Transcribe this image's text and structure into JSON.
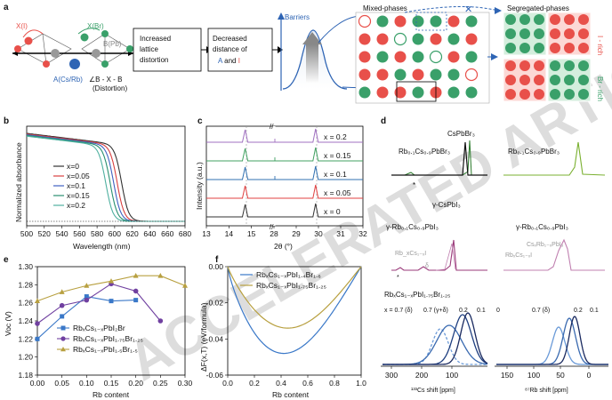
{
  "panels": {
    "a": {
      "label": "a",
      "crystal": {
        "x_label": "X(I)",
        "x2_label": "X(Br)",
        "b_label": "B(Pb)",
        "a_label": "A(Cs/Rb)",
        "angle_label": "∠B - X - B",
        "angle_sub": "(Distortion)"
      },
      "box1": [
        "Increased",
        "lattice",
        "distortion"
      ],
      "box2": [
        "Decreased",
        "distance of"
      ],
      "box2_a": "A",
      "box2_and": " and ",
      "box2_i": "I",
      "barriers_label": "Barriers",
      "mixed_title": "Mixed-phases",
      "segregated_title": "Segregated-phases",
      "i_rich": "I - rich",
      "br_rich": "Br - rich",
      "colors": {
        "red": "#e8504a",
        "green": "#3aa06a",
        "blue": "#2e64b4"
      }
    },
    "b": {
      "label": "b",
      "ylabel": "Normalized absorbance",
      "xlabel": "Wavelength (nm)",
      "legend": [
        "x=0",
        "x=0.05",
        "x=0.1",
        "x=0.15",
        "x=0.2"
      ],
      "colors": [
        "#333333",
        "#d94040",
        "#4060c0",
        "#2a9070",
        "#4fb0a0"
      ],
      "edges": [
        608,
        603,
        599,
        595,
        590
      ]
    },
    "c": {
      "label": "c",
      "ylabel": "Intensity (a.u.)",
      "xlabel": "2θ (°)",
      "break_mark": "//",
      "curves": [
        "x = 0.2",
        "x = 0.15",
        "x = 0.1",
        "x = 0.05",
        "x = 0"
      ],
      "colors": [
        "#a070c0",
        "#40a060",
        "#3070b0",
        "#e04040",
        "#333333"
      ]
    },
    "d": {
      "label": "d",
      "top_left": "CsPbBr₃",
      "top_left2": "Rb₀.₁Cs₀.₉PbBr₃",
      "top_right": "Rb₀.₁Cs₀.₉PbBr₃",
      "star": "*",
      "mid_gamma_cs": "γ-CsPbI₃",
      "mid_left": "γ-Rb₀.₁Cs₀.₉PbI₃",
      "mid_sub1": "Rb_xCs₁₋ₓI",
      "mid_delta": "δ",
      "mid_right": "γ-Rb₀.₁Cs₀.₉PbI₃",
      "mid_right_sub": "CsₓRb₁₋ₓPbI₃",
      "mid_right_sub2": "RbₓCs₁₋ₓI",
      "bottom_title": "RbₓCs₁₋ₓPbI₁.₇₅Br₁.₂₅",
      "bottom_labels_left": [
        "x = 0.7 (δ)",
        "0.7 (γ+δ)",
        "0.2",
        "0.1"
      ],
      "bottom_labels_right": [
        "0",
        "0.7 (δ)",
        "0.2",
        "0.1"
      ],
      "xlabel_left": "¹³³Cs shift [ppm]",
      "xlabel_right": "⁸⁷Rb shift [ppm]"
    },
    "e": {
      "label": "e",
      "ylabel": "Voc (V)",
      "xlabel": "Rb content",
      "legend": [
        "RbₓCs₁₋ₓPbI₂Br",
        "RbₓCs₁₋ₓPbI₁.₇₅Br₁.₂₅",
        "RbₓCs₁₋ₓPbI₁.₅Br₁.₅"
      ]
    },
    "f": {
      "label": "f",
      "ylabel": "ΔF(x,T) (eV/formula)",
      "xlabel": "Rb content",
      "legend": [
        "RbₓCs₁₋ₓPbI₁.₄Br₁.₆",
        "RbₓCs₁₋ₓPbI₁.₇₅Br₁.₂₅"
      ]
    }
  },
  "chart_data": [
    {
      "type": "line",
      "panel": "b",
      "title": "",
      "xlabel": "Wavelength (nm)",
      "ylabel": "Normalized absorbance",
      "xlim": [
        500,
        680
      ],
      "x_ticks": [
        500,
        520,
        540,
        560,
        580,
        600,
        620,
        640,
        660,
        680
      ],
      "series": [
        {
          "name": "x=0",
          "edge_nm": 608
        },
        {
          "name": "x=0.05",
          "edge_nm": 603
        },
        {
          "name": "x=0.1",
          "edge_nm": 599
        },
        {
          "name": "x=0.15",
          "edge_nm": 595
        },
        {
          "name": "x=0.2",
          "edge_nm": 590
        }
      ]
    },
    {
      "type": "line",
      "panel": "c",
      "xlabel": "2θ (°)",
      "ylabel": "Intensity (a.u.)",
      "x_ticks": [
        13,
        14,
        15,
        28,
        29,
        30,
        31,
        32
      ],
      "series": [
        {
          "name": "x = 0.2",
          "peaks": [
            14.75,
            29.85
          ]
        },
        {
          "name": "x = 0.15",
          "peaks": [
            14.75,
            29.85
          ]
        },
        {
          "name": "x = 0.1",
          "peaks": [
            14.75,
            29.85
          ]
        },
        {
          "name": "x = 0.05",
          "peaks": [
            14.75,
            29.85
          ]
        },
        {
          "name": "x = 0",
          "peaks": [
            14.75,
            29.85
          ]
        }
      ]
    },
    {
      "type": "line",
      "panel": "e",
      "xlabel": "Rb content",
      "ylabel": "Voc (V)",
      "xlim": [
        0.0,
        0.3
      ],
      "ylim": [
        1.18,
        1.3
      ],
      "x_ticks": [
        0.0,
        0.05,
        0.1,
        0.15,
        0.2,
        0.25,
        0.3
      ],
      "y_ticks": [
        1.18,
        1.2,
        1.22,
        1.24,
        1.26,
        1.28,
        1.3
      ],
      "series": [
        {
          "name": "RbₓCs₁₋ₓPbI₂Br",
          "color": "#3a78c8",
          "marker": "square",
          "x": [
            0.0,
            0.05,
            0.1,
            0.15,
            0.2
          ],
          "y": [
            1.22,
            1.245,
            1.267,
            1.262,
            1.263
          ]
        },
        {
          "name": "RbₓCs₁₋ₓPbI₁.₇₅Br₁.₂₅",
          "color": "#7040a0",
          "marker": "circle",
          "x": [
            0.0,
            0.05,
            0.1,
            0.15,
            0.2,
            0.25
          ],
          "y": [
            1.237,
            1.257,
            1.263,
            1.281,
            1.273,
            1.24
          ]
        },
        {
          "name": "RbₓCs₁₋ₓPbI₁.₅Br₁.₅",
          "color": "#b8a040",
          "marker": "triangle",
          "x": [
            0.0,
            0.05,
            0.1,
            0.15,
            0.2,
            0.25,
            0.3
          ],
          "y": [
            1.262,
            1.272,
            1.279,
            1.284,
            1.29,
            1.29,
            1.279
          ]
        }
      ]
    },
    {
      "type": "line",
      "panel": "f",
      "xlabel": "Rb content",
      "ylabel": "ΔF(x,T) (eV/formula)",
      "xlim": [
        0.0,
        1.0
      ],
      "ylim": [
        -0.06,
        0.0
      ],
      "x_ticks": [
        0.0,
        0.2,
        0.4,
        0.6,
        0.8,
        1.0
      ],
      "y_ticks": [
        0.0,
        -0.02,
        -0.04,
        -0.06
      ],
      "series": [
        {
          "name": "RbₓCs₁₋ₓPbI₁.₄Br₁.₆",
          "color": "#3a78c8",
          "min_x": 0.42,
          "min_y": -0.048
        },
        {
          "name": "RbₓCs₁₋ₓPbI₁.₇₅Br₁.₂₅",
          "color": "#b8a040",
          "min_x": 0.45,
          "min_y": -0.034
        }
      ]
    }
  ]
}
